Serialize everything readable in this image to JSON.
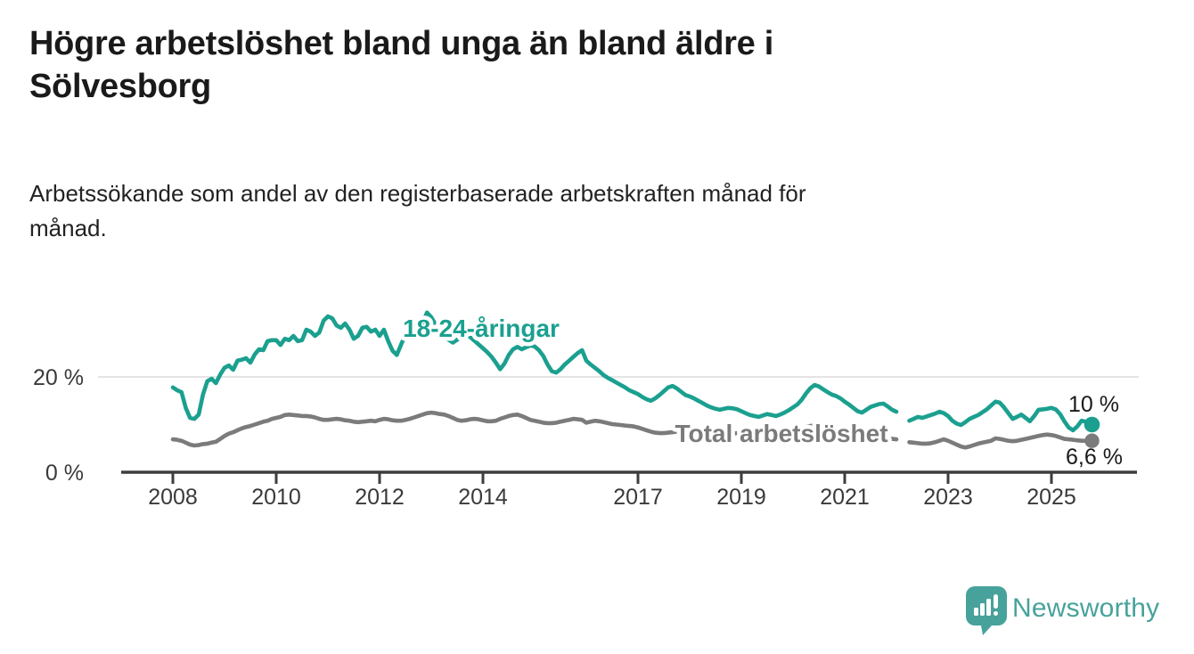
{
  "header": {
    "title_lines": [
      "Högre arbetslöshet bland unga än bland äldre i",
      "Sölvesborg"
    ],
    "subtitle_lines": [
      "Arbetssökande som andel av den registerbaserade arbetskraften månad för",
      "månad."
    ]
  },
  "footer": {
    "brand": "Newsworthy",
    "logo_icon": "newsworthy-speech-bubble-bar-chart-icon"
  },
  "colors": {
    "young": "#1ba08f",
    "total": "#7b7b7b",
    "grid": "#dcdcdc",
    "axis": "#3d3d3d",
    "text": "#1a1a1a",
    "brand": "#47a29b"
  },
  "chart_data": {
    "type": "line",
    "frequency": "monthly",
    "start_month": "2008-01",
    "end_month": "2025-10",
    "data_gap_months": [
      "2022-02",
      "2022-03"
    ],
    "unit": "%",
    "ylim": [
      0,
      37
    ],
    "grid_on": [
      20
    ],
    "x_ticks": [
      2008,
      2010,
      2012,
      2014,
      2017,
      2019,
      2021,
      2023,
      2025
    ],
    "y_ticks": [
      {
        "label": "20 %",
        "value": 20
      },
      {
        "label": "0 %",
        "value": 0
      }
    ],
    "series": [
      {
        "name": "18-24-åringar",
        "color": "#1ba08f",
        "end_label": "10 %",
        "end_value": 10,
        "values": [
          17.8,
          17.2,
          16.8,
          13.5,
          11.4,
          11.2,
          12.1,
          16.3,
          19.1,
          19.6,
          18.7,
          20.5,
          21.9,
          22.4,
          21.5,
          23.4,
          23.6,
          23.9,
          23.0,
          24.7,
          25.8,
          25.6,
          27.5,
          27.7,
          27.7,
          26.7,
          28.0,
          27.7,
          28.6,
          27.5,
          27.7,
          29.9,
          29.5,
          28.6,
          29.3,
          31.8,
          32.7,
          32.3,
          30.8,
          30.3,
          31.2,
          29.9,
          28.0,
          28.6,
          30.3,
          30.5,
          29.5,
          29.9,
          28.6,
          29.9,
          27.5,
          25.5,
          24.6,
          26.8,
          28.8,
          29.5,
          30.0,
          30.6,
          31.3,
          33.5,
          32.5,
          31.0,
          29.8,
          28.8,
          27.8,
          27.2,
          27.8,
          28.4,
          29.0,
          28.4,
          27.6,
          26.8,
          26.0,
          25.2,
          24.2,
          23.0,
          21.6,
          22.8,
          24.6,
          25.8,
          26.3,
          25.8,
          26.2,
          26.6,
          26.4,
          25.6,
          24.4,
          22.6,
          21.2,
          20.9,
          21.6,
          22.6,
          23.4,
          24.2,
          25.0,
          25.6,
          23.4,
          22.6,
          21.9,
          21.2,
          20.4,
          19.8,
          19.3,
          18.8,
          18.3,
          17.8,
          17.2,
          16.8,
          16.4,
          15.8,
          15.3,
          15.0,
          15.5,
          16.2,
          17.0,
          17.8,
          18.1,
          17.6,
          16.9,
          16.2,
          15.9,
          15.5,
          15.0,
          14.5,
          14.0,
          13.6,
          13.3,
          13.1,
          13.3,
          13.5,
          13.4,
          13.2,
          12.8,
          12.4,
          12.0,
          11.8,
          11.6,
          11.9,
          12.2,
          12.0,
          11.8,
          12.1,
          12.5,
          13.0,
          13.6,
          14.2,
          15.2,
          16.5,
          17.6,
          18.3,
          18.0,
          17.4,
          16.8,
          16.3,
          16.0,
          15.5,
          14.8,
          14.2,
          13.5,
          12.8,
          12.5,
          13.1,
          13.7,
          14.0,
          14.3,
          14.4,
          13.8,
          13.1,
          12.7,
          null,
          null,
          10.8,
          11.2,
          11.6,
          11.4,
          11.7,
          12.0,
          12.3,
          12.7,
          12.4,
          11.8,
          10.8,
          10.2,
          9.9,
          10.5,
          11.2,
          11.6,
          12.0,
          12.6,
          13.2,
          14.0,
          14.8,
          14.6,
          13.6,
          12.4,
          11.2,
          11.6,
          12.1,
          11.4,
          10.7,
          11.8,
          13.1,
          13.2,
          13.3,
          13.5,
          13.2,
          12.2,
          10.7,
          9.4,
          8.8,
          9.6,
          10.8,
          10.6,
          10.0
        ]
      },
      {
        "name": "Total arbetslöshet",
        "color": "#7b7b7b",
        "end_label": "6,6 %",
        "end_value": 6.6,
        "values": [
          6.9,
          6.8,
          6.6,
          6.2,
          5.8,
          5.6,
          5.7,
          5.9,
          6.0,
          6.2,
          6.4,
          7.0,
          7.6,
          8.1,
          8.4,
          8.8,
          9.2,
          9.5,
          9.7,
          10.0,
          10.3,
          10.6,
          10.8,
          11.2,
          11.4,
          11.6,
          12.0,
          12.1,
          12.0,
          11.9,
          11.8,
          11.8,
          11.7,
          11.5,
          11.2,
          11.0,
          11.0,
          11.1,
          11.2,
          11.1,
          10.9,
          10.8,
          10.6,
          10.5,
          10.6,
          10.7,
          10.8,
          10.7,
          11.0,
          11.2,
          11.1,
          10.9,
          10.8,
          10.8,
          11.0,
          11.2,
          11.5,
          11.8,
          12.1,
          12.4,
          12.5,
          12.4,
          12.2,
          12.1,
          11.8,
          11.4,
          11.0,
          10.8,
          10.9,
          11.1,
          11.2,
          11.1,
          10.9,
          10.7,
          10.7,
          10.8,
          11.2,
          11.5,
          11.8,
          12.0,
          12.1,
          11.8,
          11.4,
          11.0,
          10.8,
          10.6,
          10.4,
          10.3,
          10.3,
          10.4,
          10.6,
          10.8,
          11.0,
          11.2,
          11.1,
          11.0,
          10.4,
          10.6,
          10.8,
          10.7,
          10.5,
          10.3,
          10.1,
          10.0,
          9.9,
          9.8,
          9.7,
          9.6,
          9.4,
          9.1,
          8.8,
          8.5,
          8.3,
          8.2,
          8.2,
          8.3,
          8.4,
          8.5,
          8.5,
          8.4,
          8.3,
          8.2,
          8.1,
          8.0,
          7.9,
          7.9,
          7.8,
          7.8,
          7.9,
          8.0,
          8.1,
          8.2,
          8.1,
          8.0,
          7.9,
          7.8,
          7.8,
          7.9,
          7.9,
          8.0,
          8.1,
          8.2,
          8.3,
          8.4,
          8.5,
          8.7,
          9.1,
          9.5,
          9.7,
          9.8,
          9.7,
          9.5,
          9.3,
          9.1,
          8.9,
          8.7,
          8.5,
          8.3,
          8.1,
          7.9,
          7.7,
          7.5,
          7.4,
          7.3,
          7.2,
          7.1,
          7.0,
          7.0,
          6.9,
          null,
          null,
          6.3,
          6.2,
          6.1,
          6.0,
          6.0,
          6.1,
          6.3,
          6.6,
          6.9,
          6.6,
          6.2,
          5.8,
          5.4,
          5.2,
          5.4,
          5.7,
          6.0,
          6.2,
          6.4,
          6.6,
          7.1,
          7.0,
          6.8,
          6.6,
          6.5,
          6.6,
          6.8,
          7.0,
          7.2,
          7.4,
          7.6,
          7.8,
          7.9,
          7.8,
          7.6,
          7.3,
          7.0,
          6.9,
          6.8,
          6.7,
          6.6,
          6.6,
          6.6
        ]
      }
    ]
  }
}
